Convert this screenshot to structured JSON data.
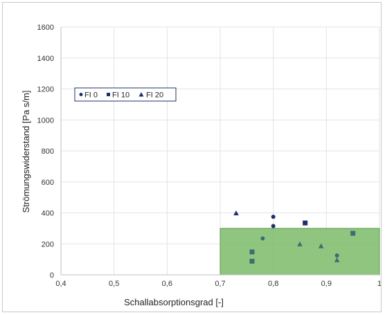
{
  "chart_data": {
    "type": "scatter",
    "xlabel": "Schallabsorptionsgrad [-]",
    "ylabel": "Strömungswiderstand [Pa s/m]",
    "xlim": [
      0.4,
      1.0
    ],
    "ylim": [
      0,
      1600
    ],
    "x_ticks": [
      "0,4",
      "0,5",
      "0,6",
      "0,7",
      "0,8",
      "0,9",
      "1"
    ],
    "y_ticks": [
      "0",
      "200",
      "400",
      "600",
      "800",
      "1000",
      "1200",
      "1400",
      "1600"
    ],
    "grid": true,
    "legend_position": "upper-left",
    "target_region": {
      "x": [
        0.7,
        1.0
      ],
      "y": [
        0,
        300
      ],
      "color": "#7dbb6a"
    },
    "series": [
      {
        "name": "FI 0",
        "marker": "circle",
        "color": "#1f2f6e",
        "points": [
          [
            0.8,
            375
          ],
          [
            0.8,
            315
          ]
        ]
      },
      {
        "name": "FI 10",
        "marker": "square",
        "color": "#1f2f6e",
        "points": [
          [
            0.86,
            335
          ]
        ]
      },
      {
        "name": "FI 20",
        "marker": "triangle",
        "color": "#1f2f6e",
        "points": [
          [
            0.73,
            398
          ]
        ]
      },
      {
        "name": "",
        "marker": "circle",
        "color": "#3b6e73",
        "points": [
          [
            0.78,
            235
          ],
          [
            0.92,
            125
          ]
        ]
      },
      {
        "name": "",
        "marker": "square",
        "color": "#3b6e73",
        "points": [
          [
            0.76,
            148
          ],
          [
            0.76,
            88
          ],
          [
            0.95,
            268
          ]
        ]
      },
      {
        "name": "",
        "marker": "triangle",
        "color": "#3b6e73",
        "points": [
          [
            0.85,
            198
          ],
          [
            0.89,
            185
          ],
          [
            0.92,
            95
          ]
        ]
      }
    ]
  }
}
